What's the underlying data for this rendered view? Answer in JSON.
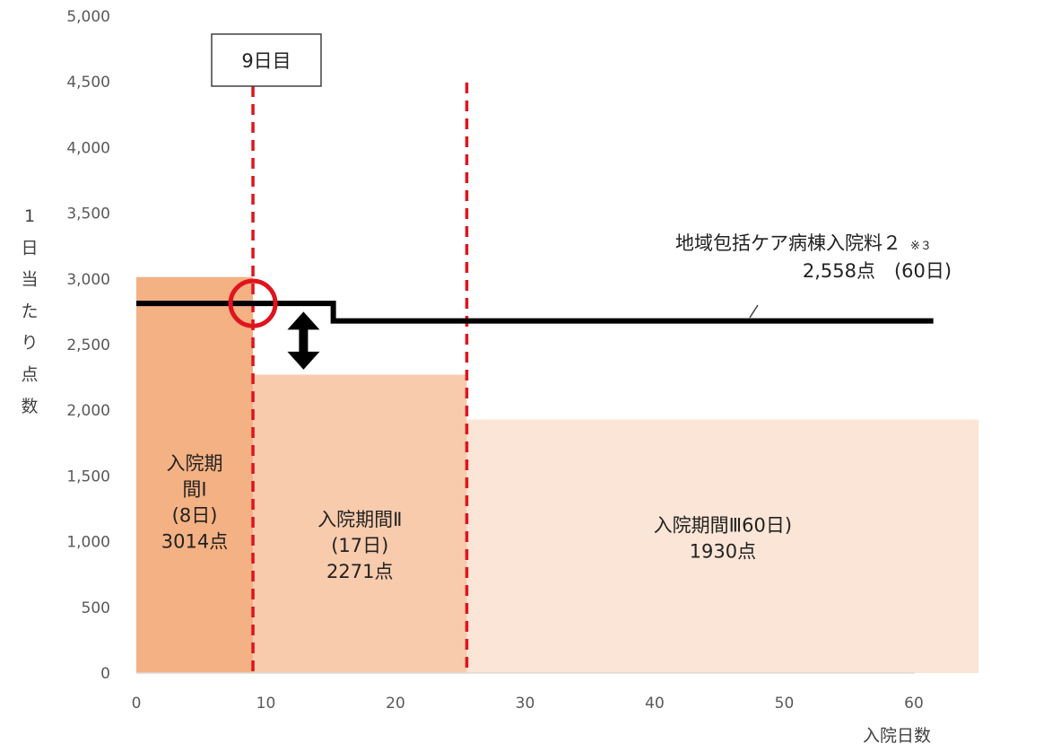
{
  "chart_data": {
    "type": "bar",
    "xlabel": "入院日数",
    "ylabel": [
      "1",
      "日",
      "当",
      "た",
      "り",
      "点",
      "数"
    ],
    "xlim": [
      0,
      65
    ],
    "ylim": [
      0,
      5000
    ],
    "xticks": [
      "0",
      "10",
      "20",
      "30",
      "40",
      "50",
      "60"
    ],
    "yticks": [
      "0",
      "500",
      "1,000",
      "1,500",
      "2,000",
      "2,500",
      "3,000",
      "3,500",
      "4,000",
      "4,500",
      "5,000"
    ],
    "grid": false,
    "segments": [
      {
        "x_start": 0,
        "x_end": 9,
        "value": 3014,
        "label_lines": [
          "入院期",
          "間Ⅰ",
          "(8日)",
          "3014点"
        ],
        "color": "#f4b183"
      },
      {
        "x_start": 9,
        "x_end": 25.5,
        "value": 2271,
        "label_lines": [
          "入院期間Ⅱ",
          "(17日)",
          "2271点"
        ],
        "color": "#f8cbad"
      },
      {
        "x_start": 25.5,
        "x_end": 65,
        "value": 1930,
        "label_lines": [
          "入院期間Ⅲ60日)",
          "1930点"
        ],
        "color": "#fbe5d6"
      }
    ],
    "line_series": {
      "lines": [
        "地域包括ケア病棟入院料２",
        "2,558点　(60日)"
      ],
      "note": "※３",
      "points": [
        [
          0,
          2813
        ],
        [
          15.2,
          2813
        ],
        [
          15.2,
          2680
        ],
        [
          61.5,
          2680
        ]
      ],
      "color": "#000000"
    },
    "vertical_markers": [
      {
        "x": 9,
        "label": "9日目",
        "color": "#e0141e"
      },
      {
        "x": 25.5,
        "label": "",
        "color": "#e0141e"
      }
    ],
    "highlight_circle": {
      "x": 9,
      "y": 2813,
      "color": "#e0141e"
    },
    "arrow": {
      "x": 12.9,
      "y_top": 2750,
      "y_bottom": 2310,
      "color": "#000000"
    }
  }
}
